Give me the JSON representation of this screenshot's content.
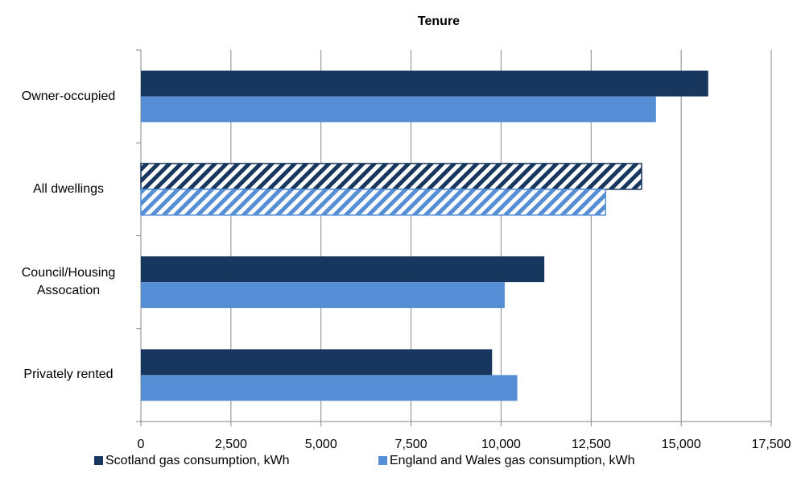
{
  "chart_data": {
    "type": "bar",
    "orientation": "horizontal",
    "title": "Tenure",
    "categories": [
      "Owner-occupied",
      "All dwellings",
      "Council/Housing Assocation",
      "Privately rented"
    ],
    "series": [
      {
        "name": "Scotland gas consumption, kWh",
        "color": "#17375e",
        "values": [
          15750,
          13900,
          11200,
          9750
        ]
      },
      {
        "name": "England and Wales gas consumption, kWh",
        "color": "#558ed5",
        "values": [
          14300,
          12900,
          10100,
          10450
        ]
      }
    ],
    "hatched": [
      false,
      true,
      false,
      false
    ],
    "xlim": [
      0,
      17500
    ],
    "xticks": [
      0,
      {
        "value": 2500,
        "label": "2,500"
      },
      {
        "value": 5000,
        "label": "5,000"
      },
      {
        "value": 7500,
        "label": "7,500"
      },
      {
        "value": 10000,
        "label": "10,000"
      },
      {
        "value": 12500,
        "label": "12,500"
      },
      {
        "value": 15000,
        "label": "15,000"
      },
      {
        "value": 17500,
        "label": "17,500"
      }
    ],
    "grid": true,
    "legend": "bottom"
  }
}
